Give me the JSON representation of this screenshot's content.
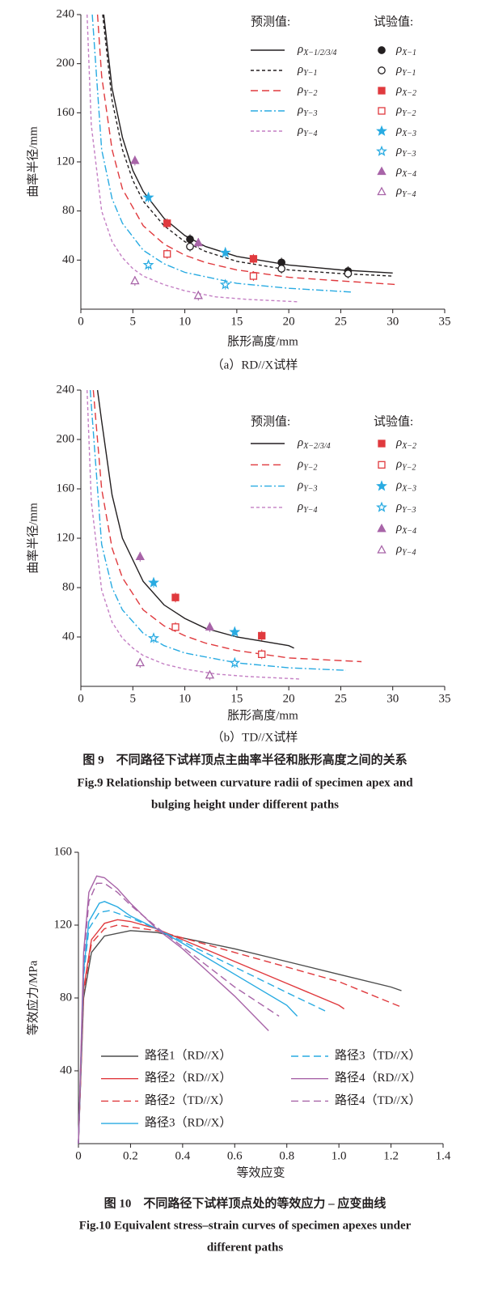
{
  "chart_data": [
    {
      "type": "line",
      "x_label": "胀形高度/mm",
      "y_label": "曲率半径/mm",
      "caption": "（a）RD//X试样",
      "xlim": [
        0,
        35
      ],
      "ylim": [
        0,
        240
      ],
      "xticks": [
        0,
        5,
        10,
        15,
        20,
        25,
        30,
        35
      ],
      "yticks": [
        40,
        80,
        120,
        160,
        200,
        240
      ],
      "legend_title": "预测值:",
      "test_legend_title": "试验值:",
      "series": [
        {
          "name": "ρX−1/2/3/4",
          "color": "#231f20",
          "dash": "solid",
          "x": [
            2.2,
            3,
            4,
            5,
            6,
            8,
            10,
            12,
            15,
            20,
            25,
            30
          ],
          "values": [
            240,
            180,
            140,
            113,
            96,
            74,
            60,
            51,
            43,
            36,
            32,
            29.5
          ]
        },
        {
          "name": "ρY−1",
          "color": "#231f20",
          "dash": "dotted",
          "x": [
            2.1,
            3,
            4,
            5,
            6,
            8,
            10,
            12,
            15,
            20,
            25,
            30
          ],
          "values": [
            240,
            170,
            130,
            105,
            88,
            68,
            55,
            47,
            39,
            32,
            29,
            27
          ]
        },
        {
          "name": "ρY−2",
          "color": "#e03a3e",
          "dash": "dashed",
          "x": [
            1.6,
            2,
            3,
            4,
            6,
            8,
            10,
            12,
            15,
            20,
            25,
            30.5
          ],
          "values": [
            240,
            190,
            130,
            98,
            68,
            53,
            44,
            38,
            32,
            26,
            23,
            20
          ]
        },
        {
          "name": "ρY−3",
          "color": "#29abe2",
          "dash": "dashdot",
          "x": [
            1.1,
            2,
            3,
            4,
            6,
            8,
            10,
            15,
            20,
            26
          ],
          "values": [
            240,
            130,
            90,
            70,
            48,
            37,
            30,
            21,
            17,
            14
          ]
        },
        {
          "name": "ρY−4",
          "color": "#c47fc4",
          "dash": "dotted",
          "x": [
            0.6,
            1,
            2,
            3,
            4,
            5,
            6,
            8,
            10,
            13,
            16,
            21
          ],
          "values": [
            240,
            150,
            80,
            55,
            42,
            33,
            27,
            20,
            15,
            10,
            8,
            6
          ]
        }
      ],
      "test_series": [
        {
          "name": "ρX−1",
          "color": "#231f20",
          "marker": "circle",
          "filled": true,
          "x": [
            10.5,
            19.3,
            25.7
          ],
          "values": [
            57,
            38,
            31
          ]
        },
        {
          "name": "ρY−1",
          "color": "#231f20",
          "marker": "circle",
          "filled": false,
          "x": [
            10.5,
            19.3,
            25.7
          ],
          "values": [
            51,
            33,
            29
          ]
        },
        {
          "name": "ρX−2",
          "color": "#e03a3e",
          "marker": "square",
          "filled": true,
          "x": [
            8.3,
            16.6
          ],
          "values": [
            70,
            41
          ]
        },
        {
          "name": "ρY−2",
          "color": "#e03a3e",
          "marker": "square",
          "filled": false,
          "x": [
            8.3,
            16.6
          ],
          "values": [
            45,
            27
          ]
        },
        {
          "name": "ρX−3",
          "color": "#29abe2",
          "marker": "star",
          "filled": true,
          "x": [
            6.5,
            13.9
          ],
          "values": [
            91,
            46
          ]
        },
        {
          "name": "ρY−3",
          "color": "#29abe2",
          "marker": "star",
          "filled": false,
          "x": [
            6.5,
            13.9
          ],
          "values": [
            36,
            20
          ]
        },
        {
          "name": "ρX−4",
          "color": "#a864a8",
          "marker": "triangle",
          "filled": true,
          "x": [
            5.2,
            11.3
          ],
          "values": [
            121,
            54
          ]
        },
        {
          "name": "ρY−4",
          "color": "#a864a8",
          "marker": "triangle",
          "filled": false,
          "x": [
            5.2,
            11.3
          ],
          "values": [
            23,
            11
          ]
        }
      ]
    },
    {
      "type": "line",
      "x_label": "胀形高度/mm",
      "y_label": "曲率半径/mm",
      "caption": "（b）TD//X试样",
      "xlim": [
        0,
        35
      ],
      "ylim": [
        0,
        240
      ],
      "xticks": [
        0,
        5,
        10,
        15,
        20,
        25,
        30,
        35
      ],
      "yticks": [
        40,
        80,
        120,
        160,
        200,
        240
      ],
      "legend_title": "预测值:",
      "test_legend_title": "试验值:",
      "series": [
        {
          "name": "ρX−2/3/4",
          "color": "#231f20",
          "dash": "solid",
          "x": [
            1.6,
            2,
            3,
            4,
            6,
            8,
            10,
            12,
            15,
            20,
            20.5
          ],
          "values": [
            240,
            215,
            155,
            120,
            85,
            66,
            55,
            47,
            40,
            33,
            31
          ]
        },
        {
          "name": "ρY−2",
          "color": "#e03a3e",
          "dash": "dashed",
          "x": [
            1.2,
            2,
            3,
            4,
            6,
            8,
            10,
            12,
            15,
            20,
            27
          ],
          "values": [
            240,
            160,
            112,
            88,
            62,
            49,
            41,
            35,
            29,
            23,
            20
          ]
        },
        {
          "name": "ρY−3",
          "color": "#29abe2",
          "dash": "dashdot",
          "x": [
            0.9,
            2,
            3,
            4,
            6,
            8,
            10,
            15,
            20,
            25.5
          ],
          "values": [
            240,
            115,
            80,
            62,
            43,
            33,
            27,
            19,
            15,
            13
          ]
        },
        {
          "name": "ρY−4",
          "color": "#c47fc4",
          "dash": "dotted",
          "x": [
            0.6,
            1,
            2,
            3,
            4,
            5,
            6,
            8,
            10,
            13,
            16,
            21
          ],
          "values": [
            240,
            150,
            78,
            52,
            39,
            31,
            25,
            18,
            14,
            10,
            8,
            6
          ]
        }
      ],
      "test_series": [
        {
          "name": "ρX−2",
          "color": "#e03a3e",
          "marker": "square",
          "filled": true,
          "x": [
            9.1,
            17.4
          ],
          "values": [
            72,
            41
          ]
        },
        {
          "name": "ρY−2",
          "color": "#e03a3e",
          "marker": "square",
          "filled": false,
          "x": [
            9.1,
            17.4
          ],
          "values": [
            48,
            26
          ]
        },
        {
          "name": "ρX−3",
          "color": "#29abe2",
          "marker": "star",
          "filled": true,
          "x": [
            7,
            14.8
          ],
          "values": [
            84,
            44
          ]
        },
        {
          "name": "ρY−3",
          "color": "#29abe2",
          "marker": "star",
          "filled": false,
          "x": [
            7,
            14.8
          ],
          "values": [
            39,
            19
          ]
        },
        {
          "name": "ρX−4",
          "color": "#a864a8",
          "marker": "triangle",
          "filled": true,
          "x": [
            5.7,
            12.4
          ],
          "values": [
            105,
            48
          ]
        },
        {
          "name": "ρY−4",
          "color": "#a864a8",
          "marker": "triangle",
          "filled": false,
          "x": [
            5.7,
            12.4
          ],
          "values": [
            19,
            9
          ]
        }
      ]
    },
    {
      "type": "line",
      "x_label": "等效应变",
      "y_label": "等效应力/MPa",
      "xlim": [
        0,
        1.4
      ],
      "ylim": [
        0,
        160
      ],
      "xticks": [
        0,
        0.2,
        0.4,
        0.6,
        0.8,
        {
          "value": 1,
          "label": "1.0"
        },
        1.2,
        1.4
      ],
      "yticks": [
        40,
        80,
        120,
        160
      ],
      "series": [
        {
          "name": "路径1（RD//X）",
          "color": "#4d4d4d",
          "dash": "solid",
          "x": [
            0,
            0.02,
            0.05,
            0.1,
            0.2,
            0.3,
            0.4,
            0.6,
            0.8,
            1.0,
            1.2,
            1.24
          ],
          "values": [
            0,
            80,
            105,
            114,
            117,
            116,
            113,
            107,
            100,
            93,
            86,
            84
          ]
        },
        {
          "name": "路径2（RD//X）",
          "color": "#e03a3e",
          "dash": "solid",
          "x": [
            0,
            0.02,
            0.05,
            0.1,
            0.15,
            0.2,
            0.3,
            0.4,
            0.6,
            0.8,
            1.0,
            1.02
          ],
          "values": [
            0,
            85,
            112,
            121,
            123,
            122,
            118,
            112,
            100,
            88,
            76,
            74
          ]
        },
        {
          "name": "路径2（TD//X）",
          "color": "#e03a3e",
          "dash": "dashed",
          "x": [
            0,
            0.02,
            0.05,
            0.1,
            0.15,
            0.2,
            0.3,
            0.4,
            0.6,
            0.8,
            1.0,
            1.24
          ],
          "values": [
            0,
            83,
            110,
            118,
            120,
            119,
            117,
            113,
            105,
            97,
            89,
            75
          ]
        },
        {
          "name": "路径3（RD//X）",
          "color": "#29abe2",
          "dash": "solid",
          "x": [
            0,
            0.02,
            0.04,
            0.08,
            0.1,
            0.15,
            0.2,
            0.3,
            0.4,
            0.6,
            0.8,
            0.84
          ],
          "values": [
            0,
            95,
            122,
            132,
            133,
            130,
            125,
            118,
            110,
            93,
            76,
            70
          ]
        },
        {
          "name": "路径3（TD//X）",
          "color": "#29abe2",
          "dash": "dashed",
          "x": [
            0,
            0.02,
            0.04,
            0.08,
            0.12,
            0.2,
            0.3,
            0.4,
            0.6,
            0.8,
            0.96
          ],
          "values": [
            0,
            92,
            118,
            127,
            128,
            124,
            118,
            111,
            97,
            83,
            72
          ]
        },
        {
          "name": "路径4（RD//X）",
          "color": "#a864a8",
          "dash": "solid",
          "x": [
            0,
            0.02,
            0.04,
            0.07,
            0.1,
            0.15,
            0.2,
            0.3,
            0.4,
            0.5,
            0.6,
            0.73
          ],
          "values": [
            0,
            105,
            138,
            147,
            146,
            140,
            132,
            118,
            107,
            94,
            81,
            62
          ]
        },
        {
          "name": "路径4（TD//X）",
          "color": "#a864a8",
          "dash": "dashed",
          "x": [
            0,
            0.02,
            0.04,
            0.07,
            0.1,
            0.15,
            0.2,
            0.3,
            0.4,
            0.6,
            0.77
          ],
          "values": [
            0,
            100,
            133,
            143,
            143,
            138,
            131,
            119,
            108,
            86,
            70
          ]
        }
      ]
    }
  ],
  "captions": [
    {
      "zh": "图 9　不同路径下试样顶点主曲率半径和胀形高度之间的关系",
      "en": [
        "Fig.9    Relationship between curvature radii of specimen apex and",
        "bulging height under different paths"
      ]
    },
    {
      "zh": "图 10　不同路径下试样顶点处的等效应力 – 应变曲线",
      "en": [
        "Fig.10    Equivalent stress–strain curves of specimen apexes under",
        "different paths"
      ]
    }
  ]
}
